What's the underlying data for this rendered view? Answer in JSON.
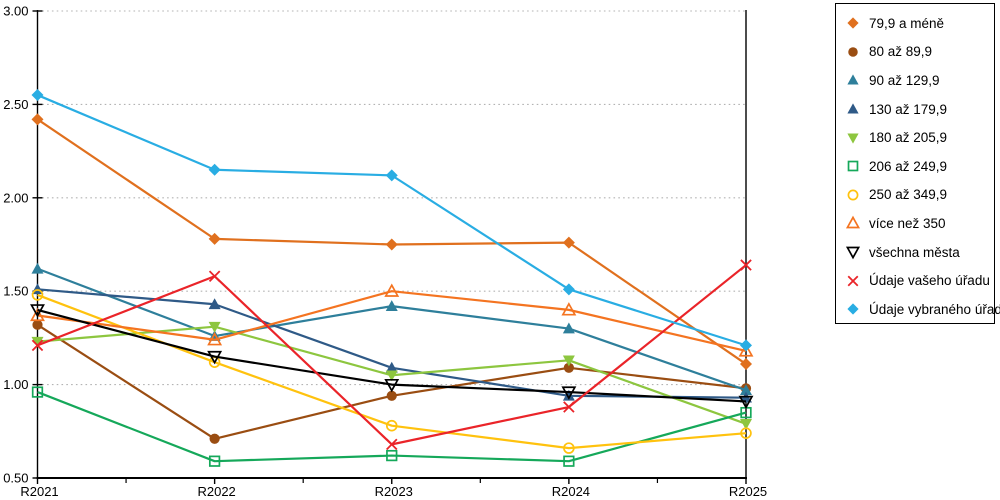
{
  "chart_data": {
    "type": "line",
    "title": "",
    "xlabel": "",
    "ylabel": "",
    "categories": [
      "R2021",
      "R2022",
      "R2023",
      "R2024",
      "R2025"
    ],
    "ylim": [
      0.5,
      3.0
    ],
    "ytick_step": 0.5,
    "ytick_labels": [
      "0.50",
      "1.00",
      "1.50",
      "2.00",
      "2.50",
      "3.00"
    ],
    "grid": "horizontal-dotted",
    "gridline_color": "#B3B3B3",
    "axis_color": "#000000",
    "legend_position": "top-right",
    "series": [
      {
        "name": "79,9 a méně",
        "marker": "diamond-filled",
        "color": "#E0701E",
        "values": [
          2.42,
          1.78,
          1.75,
          1.76,
          1.11
        ]
      },
      {
        "name": "80 až 89,9",
        "marker": "circle-filled",
        "color": "#9A4D12",
        "values": [
          1.32,
          0.71,
          0.94,
          1.09,
          0.98
        ]
      },
      {
        "name": "90 až 129,9",
        "marker": "triangle-up-filled",
        "color": "#2E7F9B",
        "values": [
          1.62,
          1.26,
          1.42,
          1.3,
          0.97
        ]
      },
      {
        "name": "130 až 179,9",
        "marker": "triangle-up-filled",
        "color": "#2F5A87",
        "values": [
          1.51,
          1.43,
          1.09,
          0.94,
          0.93
        ]
      },
      {
        "name": "180 až 205,9",
        "marker": "triangle-down-filled",
        "color": "#8DC63F",
        "values": [
          1.23,
          1.31,
          1.05,
          1.13,
          0.79
        ]
      },
      {
        "name": "206 až 249,9",
        "marker": "square-open",
        "color": "#15A85A",
        "values": [
          0.96,
          0.59,
          0.62,
          0.59,
          0.85
        ]
      },
      {
        "name": "250 až 349,9",
        "marker": "circle-open",
        "color": "#FFC20E",
        "values": [
          1.48,
          1.12,
          0.78,
          0.66,
          0.74
        ]
      },
      {
        "name": "více než 350",
        "marker": "triangle-up-open",
        "color": "#F47421",
        "values": [
          1.37,
          1.24,
          1.5,
          1.4,
          1.18
        ]
      },
      {
        "name": "všechna města",
        "marker": "triangle-down-open",
        "color": "#000000",
        "values": [
          1.4,
          1.15,
          1.0,
          0.96,
          0.91
        ]
      },
      {
        "name": "Údaje vašeho úřadu",
        "marker": "x",
        "color": "#EA2429",
        "values": [
          1.21,
          1.58,
          0.68,
          0.88,
          1.64
        ]
      },
      {
        "name": "Údaje vybraného úřadu",
        "marker": "diamond-filled",
        "color": "#29ADE3",
        "values": [
          2.55,
          2.15,
          2.12,
          1.51,
          1.21
        ]
      }
    ]
  }
}
